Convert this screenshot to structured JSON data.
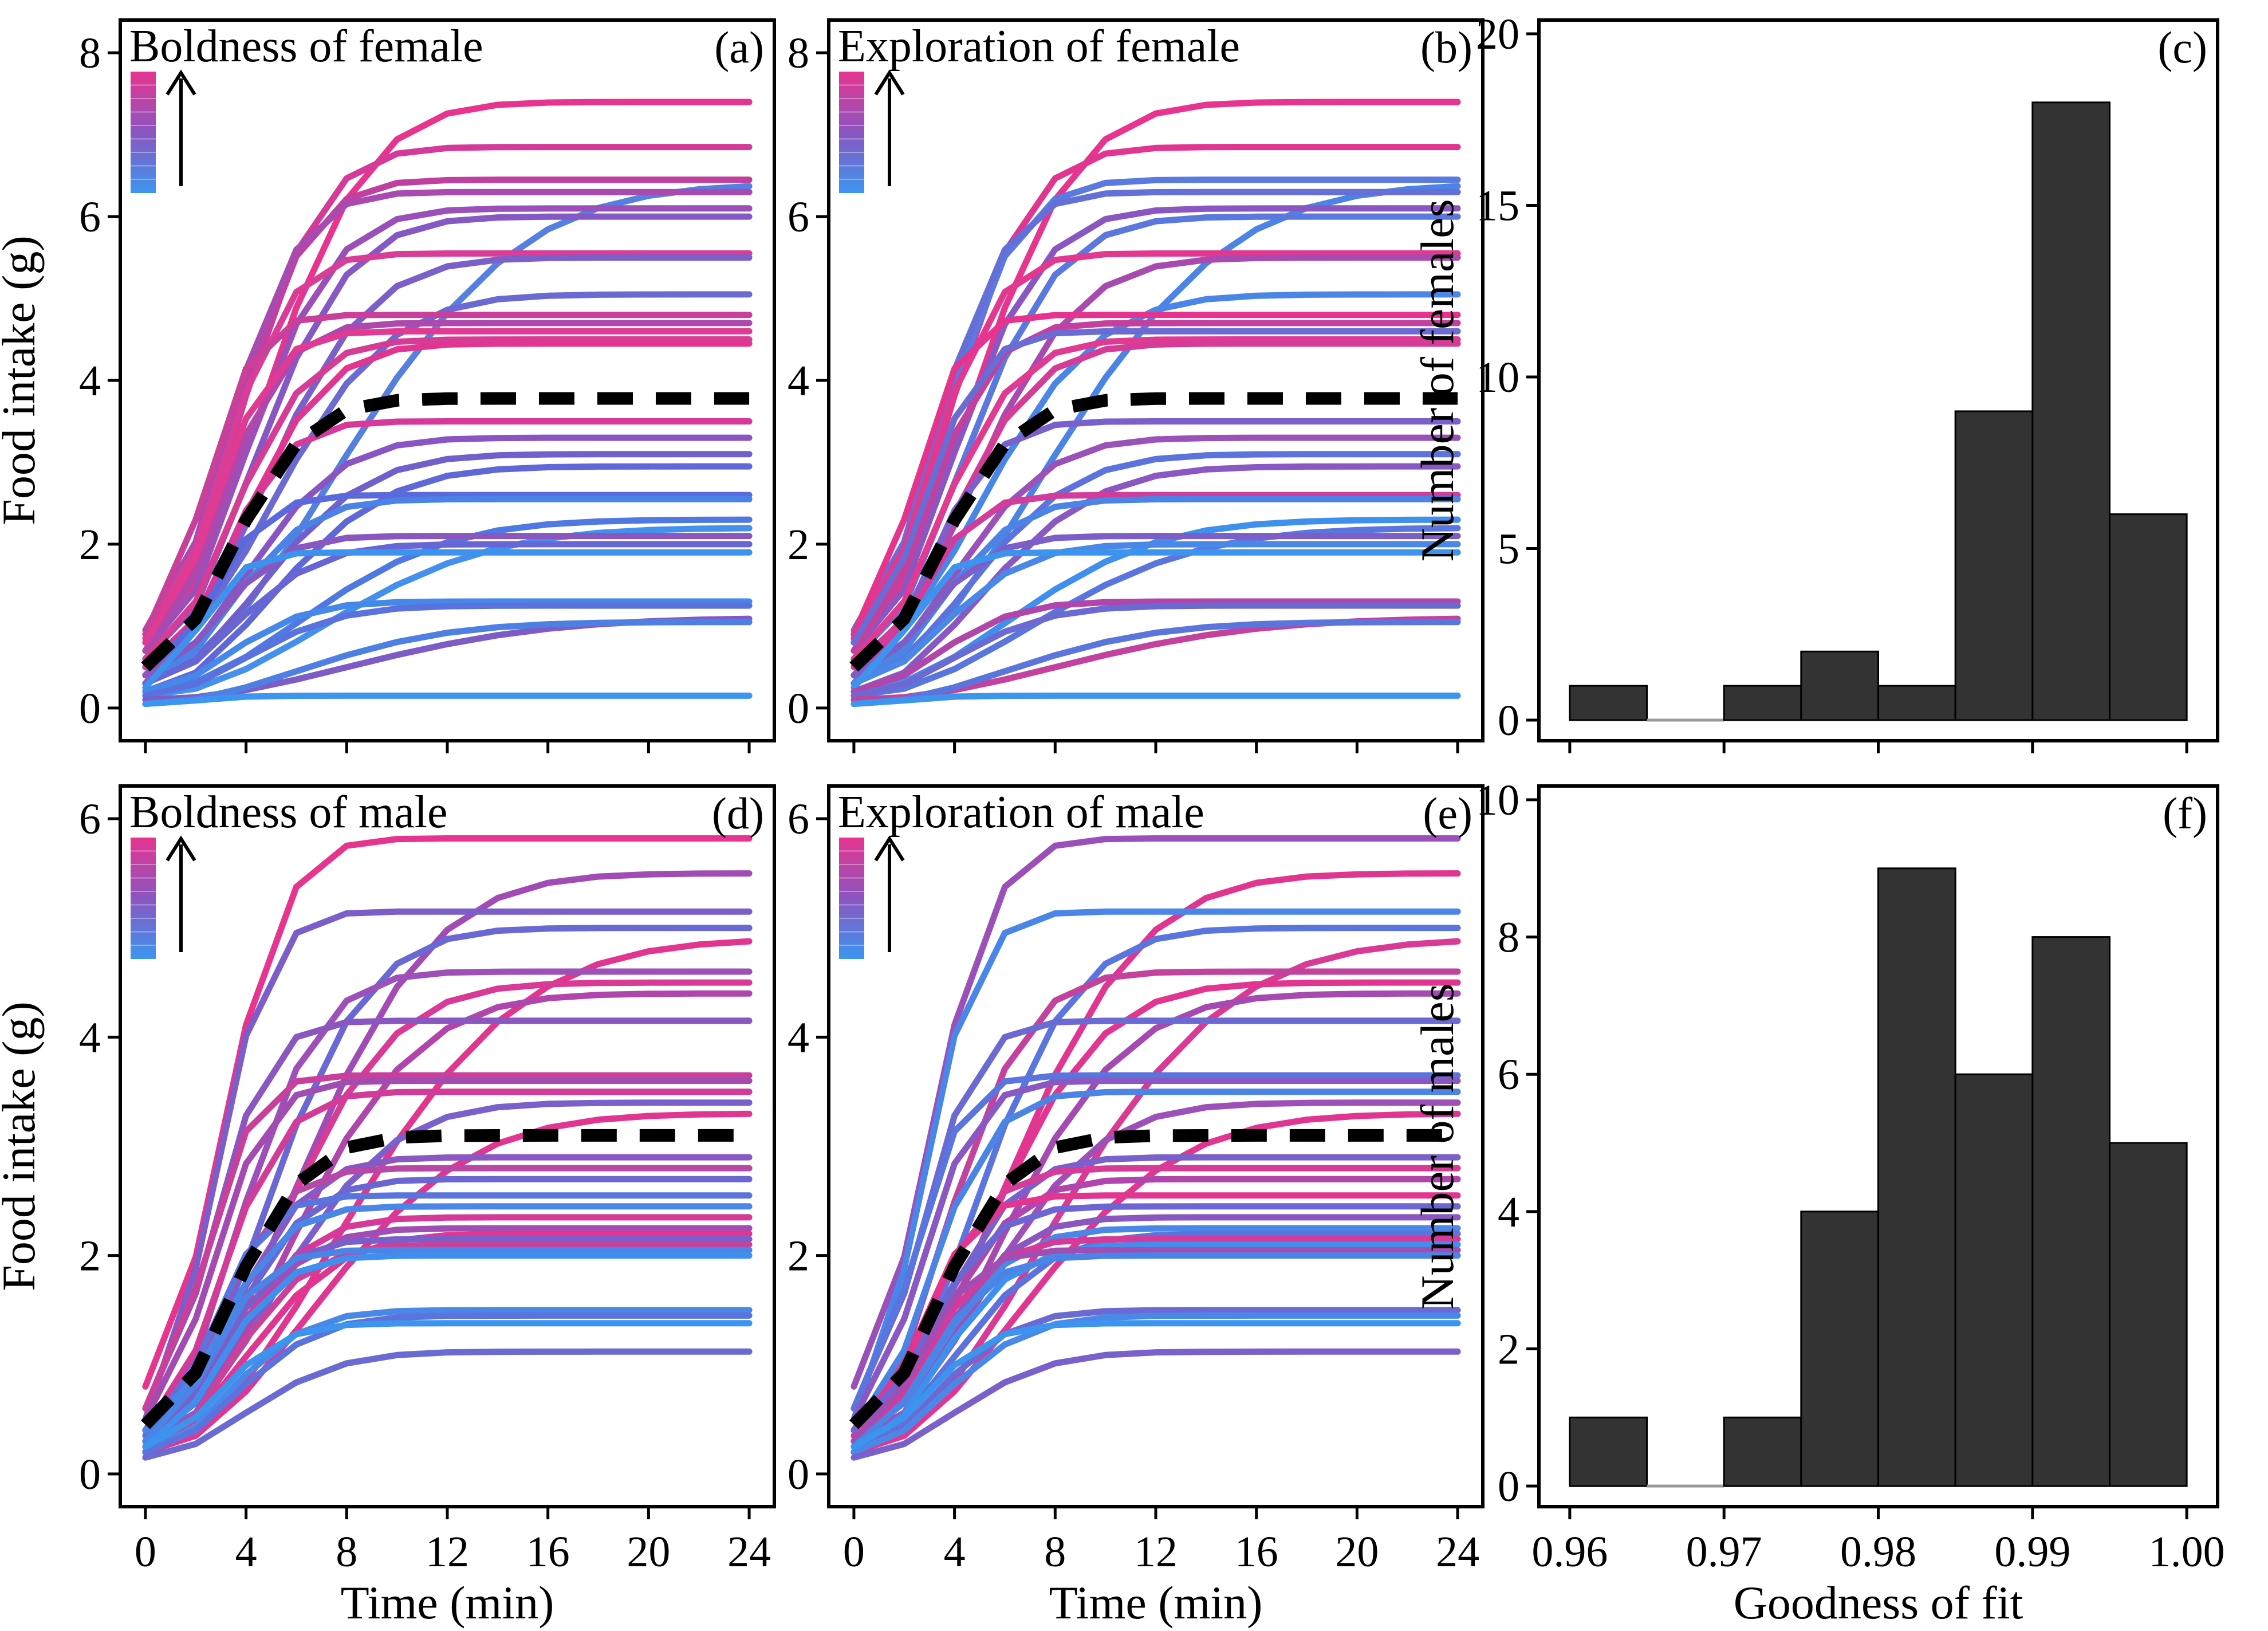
{
  "figure": {
    "x_time_label": "Time (min)",
    "x_gof_label": "Goodness of fit",
    "y_food_label": "Food intake (g)"
  },
  "chart_data": [
    {
      "id": "a",
      "type": "line",
      "tag": "(a)",
      "title": "Boldness of female",
      "xlabel": "",
      "ylabel": "Food intake (g)",
      "xlim": [
        -1,
        25
      ],
      "ylim": [
        -0.4,
        8.4
      ],
      "xticks": [
        0,
        4,
        8,
        12,
        16,
        20,
        24
      ],
      "yticks": [
        0,
        2,
        4,
        6,
        8
      ],
      "show_xticklabels": false,
      "mean_curve": {
        "start": 0.5,
        "asymptote": 3.78,
        "rate": 0.3
      },
      "curves": [
        {
          "start": 0.85,
          "asymptote": 7.4,
          "rate": 0.22,
          "color": "#e6348f"
        },
        {
          "start": 0.8,
          "asymptote": 6.85,
          "rate": 0.28,
          "color": "#d43a9a"
        },
        {
          "start": 0.9,
          "asymptote": 6.45,
          "rate": 0.3,
          "color": "#c0409f"
        },
        {
          "start": 0.4,
          "asymptote": 6.4,
          "rate": 0.13,
          "color": "#5580e0"
        },
        {
          "start": 0.95,
          "asymptote": 6.3,
          "rate": 0.32,
          "color": "#a84ab0"
        },
        {
          "start": 0.7,
          "asymptote": 6.1,
          "rate": 0.26,
          "color": "#9a50b8"
        },
        {
          "start": 0.6,
          "asymptote": 6.0,
          "rate": 0.24,
          "color": "#8558c4"
        },
        {
          "start": 0.9,
          "asymptote": 5.55,
          "rate": 0.34,
          "color": "#d83d98"
        },
        {
          "start": 0.5,
          "asymptote": 5.5,
          "rate": 0.22,
          "color": "#7a60c8"
        },
        {
          "start": 0.6,
          "asymptote": 5.05,
          "rate": 0.2,
          "color": "#6a6ad2"
        },
        {
          "start": 0.9,
          "asymptote": 4.8,
          "rate": 0.45,
          "color": "#c8409a"
        },
        {
          "start": 0.7,
          "asymptote": 4.7,
          "rate": 0.35,
          "color": "#ae48ad"
        },
        {
          "start": 0.8,
          "asymptote": 4.6,
          "rate": 0.38,
          "color": "#e03a92"
        },
        {
          "start": 0.6,
          "asymptote": 4.5,
          "rate": 0.3,
          "color": "#d43c96"
        },
        {
          "start": 0.5,
          "asymptote": 4.45,
          "rate": 0.27,
          "color": "#e2358f"
        },
        {
          "start": 0.3,
          "asymptote": 3.5,
          "rate": 0.35,
          "color": "#d6399a"
        },
        {
          "start": 0.4,
          "asymptote": 3.3,
          "rate": 0.25,
          "color": "#8a55c2"
        },
        {
          "start": 0.3,
          "asymptote": 3.1,
          "rate": 0.22,
          "color": "#7060cc"
        },
        {
          "start": 0.2,
          "asymptote": 2.95,
          "rate": 0.2,
          "color": "#6068d8"
        },
        {
          "start": 0.4,
          "asymptote": 2.6,
          "rate": 0.4,
          "color": "#5a6adc"
        },
        {
          "start": 0.3,
          "asymptote": 2.55,
          "rate": 0.3,
          "color": "#4a82e6"
        },
        {
          "start": 0.2,
          "asymptote": 2.3,
          "rate": 0.16,
          "color": "#4f78e2"
        },
        {
          "start": 0.15,
          "asymptote": 2.2,
          "rate": 0.14,
          "color": "#4590ec"
        },
        {
          "start": 0.4,
          "asymptote": 2.1,
          "rate": 0.35,
          "color": "#8a56c0"
        },
        {
          "start": 0.3,
          "asymptote": 2.0,
          "rate": 0.28,
          "color": "#6866d4"
        },
        {
          "start": 0.25,
          "asymptote": 1.9,
          "rate": 0.5,
          "color": "#3d92ee"
        },
        {
          "start": 0.2,
          "asymptote": 1.3,
          "rate": 0.3,
          "color": "#4688ea"
        },
        {
          "start": 0.15,
          "asymptote": 1.25,
          "rate": 0.25,
          "color": "#5a72de"
        },
        {
          "start": 0.1,
          "asymptote": 1.1,
          "rate": 0.12,
          "color": "#7e5cc6"
        },
        {
          "start": 0.05,
          "asymptote": 1.05,
          "rate": 0.16,
          "color": "#4e80e4"
        },
        {
          "start": 0.05,
          "asymptote": 0.15,
          "rate": 0.5,
          "color": "#3c96f0"
        }
      ]
    },
    {
      "id": "b",
      "type": "line",
      "tag": "(b)",
      "title": "Exploration of female",
      "xlabel": "",
      "ylabel": "",
      "xlim": [
        -1,
        25
      ],
      "ylim": [
        -0.4,
        8.4
      ],
      "xticks": [
        0,
        4,
        8,
        12,
        16,
        20,
        24
      ],
      "yticks": [
        0,
        2,
        4,
        6,
        8
      ],
      "show_xticklabels": false,
      "mean_curve": {
        "start": 0.5,
        "asymptote": 3.78,
        "rate": 0.3
      },
      "curves": [
        {
          "start": 0.85,
          "asymptote": 7.4,
          "rate": 0.22,
          "color": "#e6348f"
        },
        {
          "start": 0.8,
          "asymptote": 6.85,
          "rate": 0.28,
          "color": "#e03590"
        },
        {
          "start": 0.9,
          "asymptote": 6.45,
          "rate": 0.3,
          "color": "#5a7ae0"
        },
        {
          "start": 0.4,
          "asymptote": 6.4,
          "rate": 0.13,
          "color": "#4c84e6"
        },
        {
          "start": 0.95,
          "asymptote": 6.3,
          "rate": 0.32,
          "color": "#6470d8"
        },
        {
          "start": 0.7,
          "asymptote": 6.1,
          "rate": 0.26,
          "color": "#8a56c2"
        },
        {
          "start": 0.6,
          "asymptote": 6.0,
          "rate": 0.24,
          "color": "#5a78de"
        },
        {
          "start": 0.9,
          "asymptote": 5.55,
          "rate": 0.34,
          "color": "#e23890"
        },
        {
          "start": 0.5,
          "asymptote": 5.5,
          "rate": 0.22,
          "color": "#a84bb0"
        },
        {
          "start": 0.6,
          "asymptote": 5.05,
          "rate": 0.2,
          "color": "#4a86e8"
        },
        {
          "start": 0.9,
          "asymptote": 4.8,
          "rate": 0.45,
          "color": "#e6348e"
        },
        {
          "start": 0.7,
          "asymptote": 4.7,
          "rate": 0.35,
          "color": "#c4409e"
        },
        {
          "start": 0.8,
          "asymptote": 4.6,
          "rate": 0.38,
          "color": "#6a6cd4"
        },
        {
          "start": 0.6,
          "asymptote": 4.5,
          "rate": 0.3,
          "color": "#e03a92"
        },
        {
          "start": 0.5,
          "asymptote": 4.45,
          "rate": 0.27,
          "color": "#d43c98"
        },
        {
          "start": 0.3,
          "asymptote": 3.5,
          "rate": 0.35,
          "color": "#7a60cc"
        },
        {
          "start": 0.4,
          "asymptote": 3.3,
          "rate": 0.25,
          "color": "#9a52b8"
        },
        {
          "start": 0.3,
          "asymptote": 3.1,
          "rate": 0.22,
          "color": "#5c72dc"
        },
        {
          "start": 0.2,
          "asymptote": 2.95,
          "rate": 0.2,
          "color": "#8a58c2"
        },
        {
          "start": 0.4,
          "asymptote": 2.6,
          "rate": 0.4,
          "color": "#d23c9a"
        },
        {
          "start": 0.3,
          "asymptote": 2.55,
          "rate": 0.3,
          "color": "#4c84e6"
        },
        {
          "start": 0.2,
          "asymptote": 2.3,
          "rate": 0.16,
          "color": "#3f90ee"
        },
        {
          "start": 0.15,
          "asymptote": 2.2,
          "rate": 0.14,
          "color": "#5a76de"
        },
        {
          "start": 0.4,
          "asymptote": 2.1,
          "rate": 0.35,
          "color": "#7c5ec8"
        },
        {
          "start": 0.3,
          "asymptote": 2.0,
          "rate": 0.28,
          "color": "#4a88e8"
        },
        {
          "start": 0.25,
          "asymptote": 1.9,
          "rate": 0.5,
          "color": "#3c94ef"
        },
        {
          "start": 0.2,
          "asymptote": 1.3,
          "rate": 0.3,
          "color": "#b046aa"
        },
        {
          "start": 0.15,
          "asymptote": 1.25,
          "rate": 0.25,
          "color": "#6a6ad2"
        },
        {
          "start": 0.1,
          "asymptote": 1.1,
          "rate": 0.12,
          "color": "#c2429e"
        },
        {
          "start": 0.05,
          "asymptote": 1.05,
          "rate": 0.16,
          "color": "#5a76dc"
        },
        {
          "start": 0.05,
          "asymptote": 0.15,
          "rate": 0.5,
          "color": "#3c96f0"
        }
      ]
    },
    {
      "id": "c",
      "type": "histogram",
      "tag": "(c)",
      "title": "",
      "xlabel": "",
      "ylabel": "Number of females",
      "xlim": [
        0.958,
        1.002
      ],
      "ylim": [
        -0.6,
        20.4
      ],
      "xticks": [
        0.96,
        0.97,
        0.98,
        0.99,
        1.0
      ],
      "yticks": [
        0,
        5,
        10,
        15,
        20
      ],
      "show_xticklabels": false,
      "bin_width": 0.005,
      "bin_starts": [
        0.96,
        0.965,
        0.97,
        0.975,
        0.98,
        0.985,
        0.99,
        0.995
      ],
      "values": [
        1,
        0,
        1,
        2,
        1,
        9,
        18,
        6
      ],
      "bar_color": "#333333"
    },
    {
      "id": "d",
      "type": "line",
      "tag": "(d)",
      "title": "Boldness of male",
      "xlabel": "Time (min)",
      "ylabel": "Food intake (g)",
      "xlim": [
        -1,
        25
      ],
      "ylim": [
        -0.3,
        6.3
      ],
      "xticks": [
        0,
        4,
        8,
        12,
        16,
        20,
        24
      ],
      "yticks": [
        0,
        2,
        4,
        6
      ],
      "show_xticklabels": true,
      "mean_curve": {
        "start": 0.45,
        "asymptote": 3.1,
        "rate": 0.3
      },
      "curves": [
        {
          "start": 0.8,
          "asymptote": 5.82,
          "rate": 0.35,
          "color": "#e6348f"
        },
        {
          "start": 0.4,
          "asymptote": 5.5,
          "rate": 0.17,
          "color": "#a04cb4"
        },
        {
          "start": 0.5,
          "asymptote": 5.15,
          "rate": 0.4,
          "color": "#7c5ec8"
        },
        {
          "start": 0.3,
          "asymptote": 5.0,
          "rate": 0.22,
          "color": "#6a68d2"
        },
        {
          "start": 0.2,
          "asymptote": 4.9,
          "rate": 0.13,
          "color": "#e23590"
        },
        {
          "start": 0.4,
          "asymptote": 4.6,
          "rate": 0.28,
          "color": "#9c50b8"
        },
        {
          "start": 0.3,
          "asymptote": 4.5,
          "rate": 0.2,
          "color": "#d83a96"
        },
        {
          "start": 0.25,
          "asymptote": 4.4,
          "rate": 0.18,
          "color": "#b046ac"
        },
        {
          "start": 0.6,
          "asymptote": 4.15,
          "rate": 0.4,
          "color": "#8a56c0"
        },
        {
          "start": 0.6,
          "asymptote": 3.65,
          "rate": 0.45,
          "color": "#c8409c"
        },
        {
          "start": 0.5,
          "asymptote": 3.6,
          "rate": 0.4,
          "color": "#a24cb2"
        },
        {
          "start": 0.4,
          "asymptote": 3.5,
          "rate": 0.35,
          "color": "#d23c98"
        },
        {
          "start": 0.3,
          "asymptote": 3.4,
          "rate": 0.2,
          "color": "#7a60ca"
        },
        {
          "start": 0.2,
          "asymptote": 3.3,
          "rate": 0.15,
          "color": "#e03692"
        },
        {
          "start": 0.3,
          "asymptote": 2.9,
          "rate": 0.3,
          "color": "#8a58c2"
        },
        {
          "start": 0.4,
          "asymptote": 2.8,
          "rate": 0.35,
          "color": "#b848a6"
        },
        {
          "start": 0.3,
          "asymptote": 2.7,
          "rate": 0.3,
          "color": "#6c66d2"
        },
        {
          "start": 0.35,
          "asymptote": 2.55,
          "rate": 0.4,
          "color": "#5a74de"
        },
        {
          "start": 0.4,
          "asymptote": 2.45,
          "rate": 0.35,
          "color": "#4a86e8"
        },
        {
          "start": 0.3,
          "asymptote": 2.35,
          "rate": 0.3,
          "color": "#d63a98"
        },
        {
          "start": 0.3,
          "asymptote": 2.25,
          "rate": 0.3,
          "color": "#a04eb4"
        },
        {
          "start": 0.25,
          "asymptote": 2.2,
          "rate": 0.25,
          "color": "#e03590"
        },
        {
          "start": 0.3,
          "asymptote": 2.15,
          "rate": 0.35,
          "color": "#7a5eca"
        },
        {
          "start": 0.2,
          "asymptote": 2.1,
          "rate": 0.3,
          "color": "#c8429c"
        },
        {
          "start": 0.3,
          "asymptote": 2.05,
          "rate": 0.4,
          "color": "#4c84e6"
        },
        {
          "start": 0.25,
          "asymptote": 2.0,
          "rate": 0.35,
          "color": "#3f90ee"
        },
        {
          "start": 0.2,
          "asymptote": 1.5,
          "rate": 0.3,
          "color": "#4a88e8"
        },
        {
          "start": 0.2,
          "asymptote": 1.45,
          "rate": 0.28,
          "color": "#5c72dc"
        },
        {
          "start": 0.25,
          "asymptote": 1.38,
          "rate": 0.35,
          "color": "#3c94ef"
        },
        {
          "start": 0.15,
          "asymptote": 1.12,
          "rate": 0.25,
          "color": "#6a6ad2"
        }
      ]
    },
    {
      "id": "e",
      "type": "line",
      "tag": "(e)",
      "title": "Exploration of male",
      "xlabel": "Time (min)",
      "ylabel": "",
      "xlim": [
        -1,
        25
      ],
      "ylim": [
        -0.3,
        6.3
      ],
      "xticks": [
        0,
        4,
        8,
        12,
        16,
        20,
        24
      ],
      "yticks": [
        0,
        2,
        4,
        6
      ],
      "show_xticklabels": true,
      "mean_curve": {
        "start": 0.45,
        "asymptote": 3.1,
        "rate": 0.3
      },
      "curves": [
        {
          "start": 0.8,
          "asymptote": 5.82,
          "rate": 0.35,
          "color": "#9a50b8"
        },
        {
          "start": 0.4,
          "asymptote": 5.5,
          "rate": 0.17,
          "color": "#e03590"
        },
        {
          "start": 0.5,
          "asymptote": 5.15,
          "rate": 0.4,
          "color": "#4a86e8"
        },
        {
          "start": 0.3,
          "asymptote": 5.0,
          "rate": 0.22,
          "color": "#5a76de"
        },
        {
          "start": 0.2,
          "asymptote": 4.9,
          "rate": 0.13,
          "color": "#d83a96"
        },
        {
          "start": 0.4,
          "asymptote": 4.6,
          "rate": 0.28,
          "color": "#c2429e"
        },
        {
          "start": 0.3,
          "asymptote": 4.5,
          "rate": 0.2,
          "color": "#e23590"
        },
        {
          "start": 0.25,
          "asymptote": 4.4,
          "rate": 0.18,
          "color": "#a44ab0"
        },
        {
          "start": 0.6,
          "asymptote": 4.15,
          "rate": 0.4,
          "color": "#6a6ad2"
        },
        {
          "start": 0.6,
          "asymptote": 3.65,
          "rate": 0.45,
          "color": "#5a76de"
        },
        {
          "start": 0.5,
          "asymptote": 3.6,
          "rate": 0.4,
          "color": "#8a58c2"
        },
        {
          "start": 0.4,
          "asymptote": 3.5,
          "rate": 0.35,
          "color": "#4c84e6"
        },
        {
          "start": 0.3,
          "asymptote": 3.4,
          "rate": 0.2,
          "color": "#9c50b8"
        },
        {
          "start": 0.2,
          "asymptote": 3.3,
          "rate": 0.15,
          "color": "#e03692"
        },
        {
          "start": 0.3,
          "asymptote": 2.9,
          "rate": 0.3,
          "color": "#7a60ca"
        },
        {
          "start": 0.4,
          "asymptote": 2.8,
          "rate": 0.35,
          "color": "#d43c98"
        },
        {
          "start": 0.3,
          "asymptote": 2.7,
          "rate": 0.3,
          "color": "#b046ac"
        },
        {
          "start": 0.35,
          "asymptote": 2.55,
          "rate": 0.4,
          "color": "#e23590"
        },
        {
          "start": 0.4,
          "asymptote": 2.45,
          "rate": 0.35,
          "color": "#6c66d2"
        },
        {
          "start": 0.3,
          "asymptote": 2.35,
          "rate": 0.3,
          "color": "#8a56c0"
        },
        {
          "start": 0.3,
          "asymptote": 2.25,
          "rate": 0.3,
          "color": "#4a88e8"
        },
        {
          "start": 0.25,
          "asymptote": 2.2,
          "rate": 0.25,
          "color": "#5c72dc"
        },
        {
          "start": 0.3,
          "asymptote": 2.15,
          "rate": 0.35,
          "color": "#d63a98"
        },
        {
          "start": 0.2,
          "asymptote": 2.1,
          "rate": 0.3,
          "color": "#3f90ee"
        },
        {
          "start": 0.3,
          "asymptote": 2.05,
          "rate": 0.4,
          "color": "#a04eb4"
        },
        {
          "start": 0.25,
          "asymptote": 2.0,
          "rate": 0.35,
          "color": "#4c84e6"
        },
        {
          "start": 0.2,
          "asymptote": 1.5,
          "rate": 0.3,
          "color": "#6a6ad2"
        },
        {
          "start": 0.2,
          "asymptote": 1.45,
          "rate": 0.28,
          "color": "#4a88e8"
        },
        {
          "start": 0.25,
          "asymptote": 1.38,
          "rate": 0.35,
          "color": "#3c94ef"
        },
        {
          "start": 0.15,
          "asymptote": 1.12,
          "rate": 0.25,
          "color": "#7a60ca"
        }
      ]
    },
    {
      "id": "f",
      "type": "histogram",
      "tag": "(f)",
      "title": "",
      "xlabel": "Goodness of fit",
      "ylabel": "Number of males",
      "xlim": [
        0.958,
        1.002
      ],
      "ylim": [
        -0.3,
        10.2
      ],
      "xticks": [
        0.96,
        0.97,
        0.98,
        0.99,
        1.0
      ],
      "yticks": [
        0,
        2,
        4,
        6,
        8,
        10
      ],
      "xticklabels": [
        "0.96",
        "0.97",
        "0.98",
        "0.99",
        "1.00"
      ],
      "show_xticklabels": true,
      "bin_width": 0.005,
      "bin_starts": [
        0.96,
        0.965,
        0.97,
        0.975,
        0.98,
        0.985,
        0.99,
        0.995
      ],
      "values": [
        1,
        0,
        1,
        4,
        9,
        6,
        8,
        5
      ],
      "bar_color": "#333333"
    }
  ]
}
